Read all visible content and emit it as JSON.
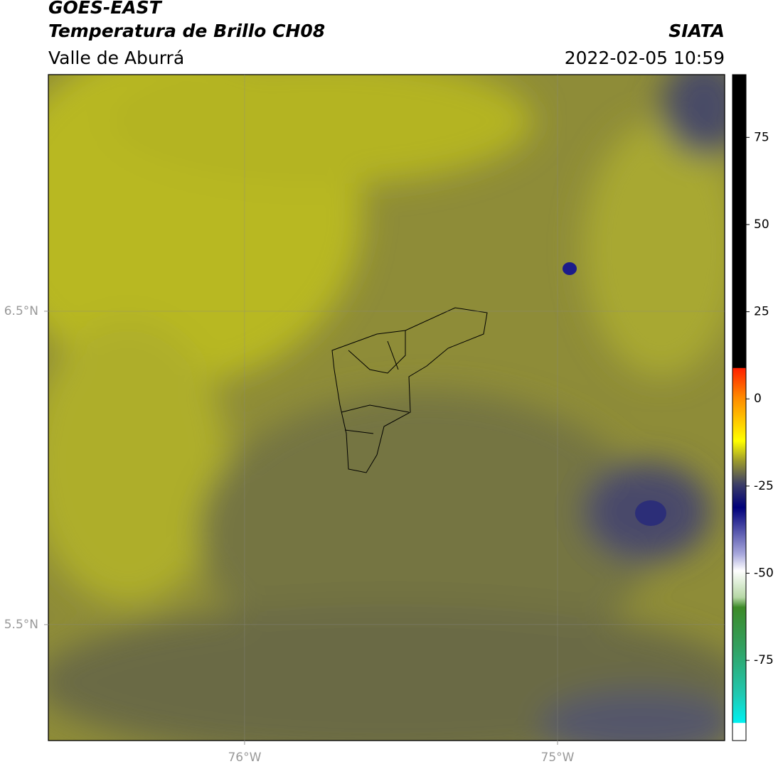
{
  "header": {
    "title": "GOES-EAST",
    "subtitle": "Temperatura de Brillo CH08",
    "region": "Valle de Aburrá",
    "source": "SIATA",
    "datetime": "2022-02-05 10:59"
  },
  "map": {
    "xlim": [
      -76.627,
      -74.466
    ],
    "ylim": [
      5.13,
      7.255
    ],
    "xticks": [
      {
        "value": -76,
        "label": "76°W"
      },
      {
        "value": -75,
        "label": "75°W"
      }
    ],
    "yticks": [
      {
        "value": 6.5,
        "label": "6.5°N"
      },
      {
        "value": 5.5,
        "label": "5.5°N"
      }
    ],
    "grid": true
  },
  "colorbar": {
    "lim": [
      -98,
      93
    ],
    "ticks": [
      75,
      50,
      25,
      0,
      -25,
      -50,
      -75
    ]
  }
}
